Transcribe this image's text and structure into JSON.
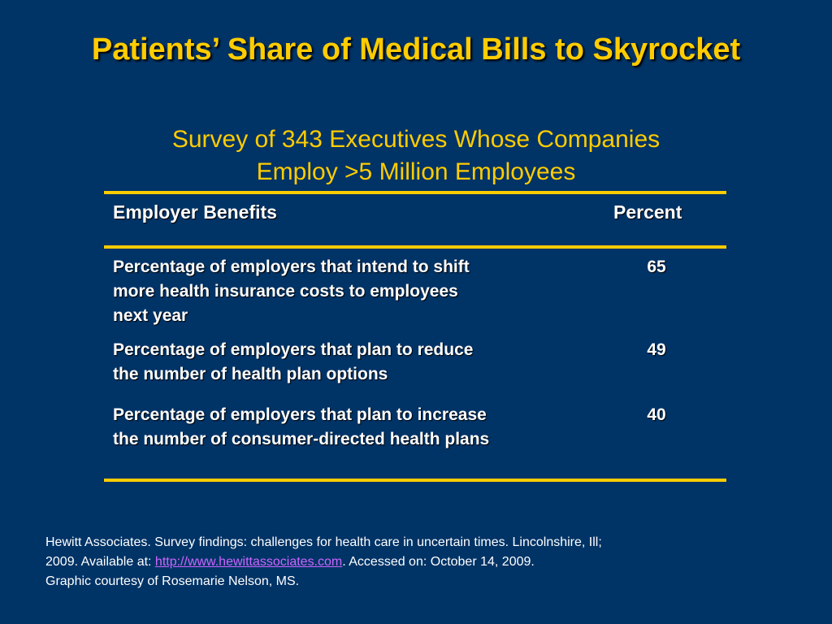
{
  "slide": {
    "title": "Patients’ Share of Medical Bills to Skyrocket",
    "subtitle_line1": "Survey of 343 Executives Whose Companies",
    "subtitle_line2": "Employ >5 Million Employees"
  },
  "table": {
    "headers": [
      "Employer Benefits",
      "Percent"
    ],
    "rows": [
      {
        "label_lines": [
          "Percentage of employers that intend to shift",
          "more health insurance costs to employees",
          "next year"
        ],
        "value": "65"
      },
      {
        "label_lines": [
          "Percentage of employers that plan to reduce",
          "the number of health plan options"
        ],
        "value": "49"
      },
      {
        "label_lines": [
          "Percentage of employers that plan to increase",
          "the number of consumer-directed health plans"
        ],
        "value": "40"
      }
    ]
  },
  "footer": {
    "line1": "Hewitt Associates. Survey findings: challenges for health care in uncertain times. Lincolnshire, Ill;",
    "line2_prefix": "2009. Available at: ",
    "link_text": "http://www.hewittassociates.com",
    "line2_suffix": ". Accessed on: October 14, 2009.",
    "line3": "Graphic courtesy of Rosemarie Nelson, MS."
  },
  "colors": {
    "background": "#003366",
    "accent": "#FFCC00",
    "text": "#FFFFFF",
    "link": "#CC66FF"
  }
}
